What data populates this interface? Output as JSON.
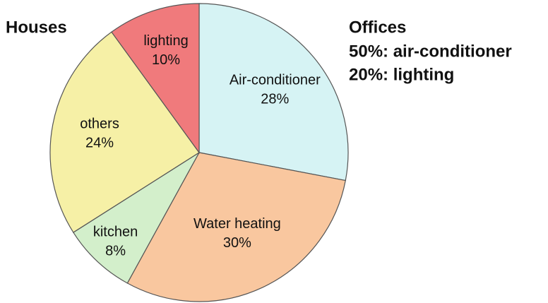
{
  "chart_data": {
    "type": "pie",
    "title": "Houses",
    "categories": [
      "Air-conditioner",
      "Water heating",
      "kitchen",
      "others",
      "lighting"
    ],
    "values": [
      28,
      30,
      8,
      24,
      10
    ],
    "value_labels": [
      "28%",
      "30%",
      "8%",
      "24%",
      "10%"
    ],
    "colors": [
      "#d6f3f4",
      "#f9c79f",
      "#d3efcb",
      "#f6f0a6",
      "#f07a7c"
    ],
    "annotations": [
      "Offices",
      "50%: air-conditioner",
      "20%: lighting"
    ]
  }
}
